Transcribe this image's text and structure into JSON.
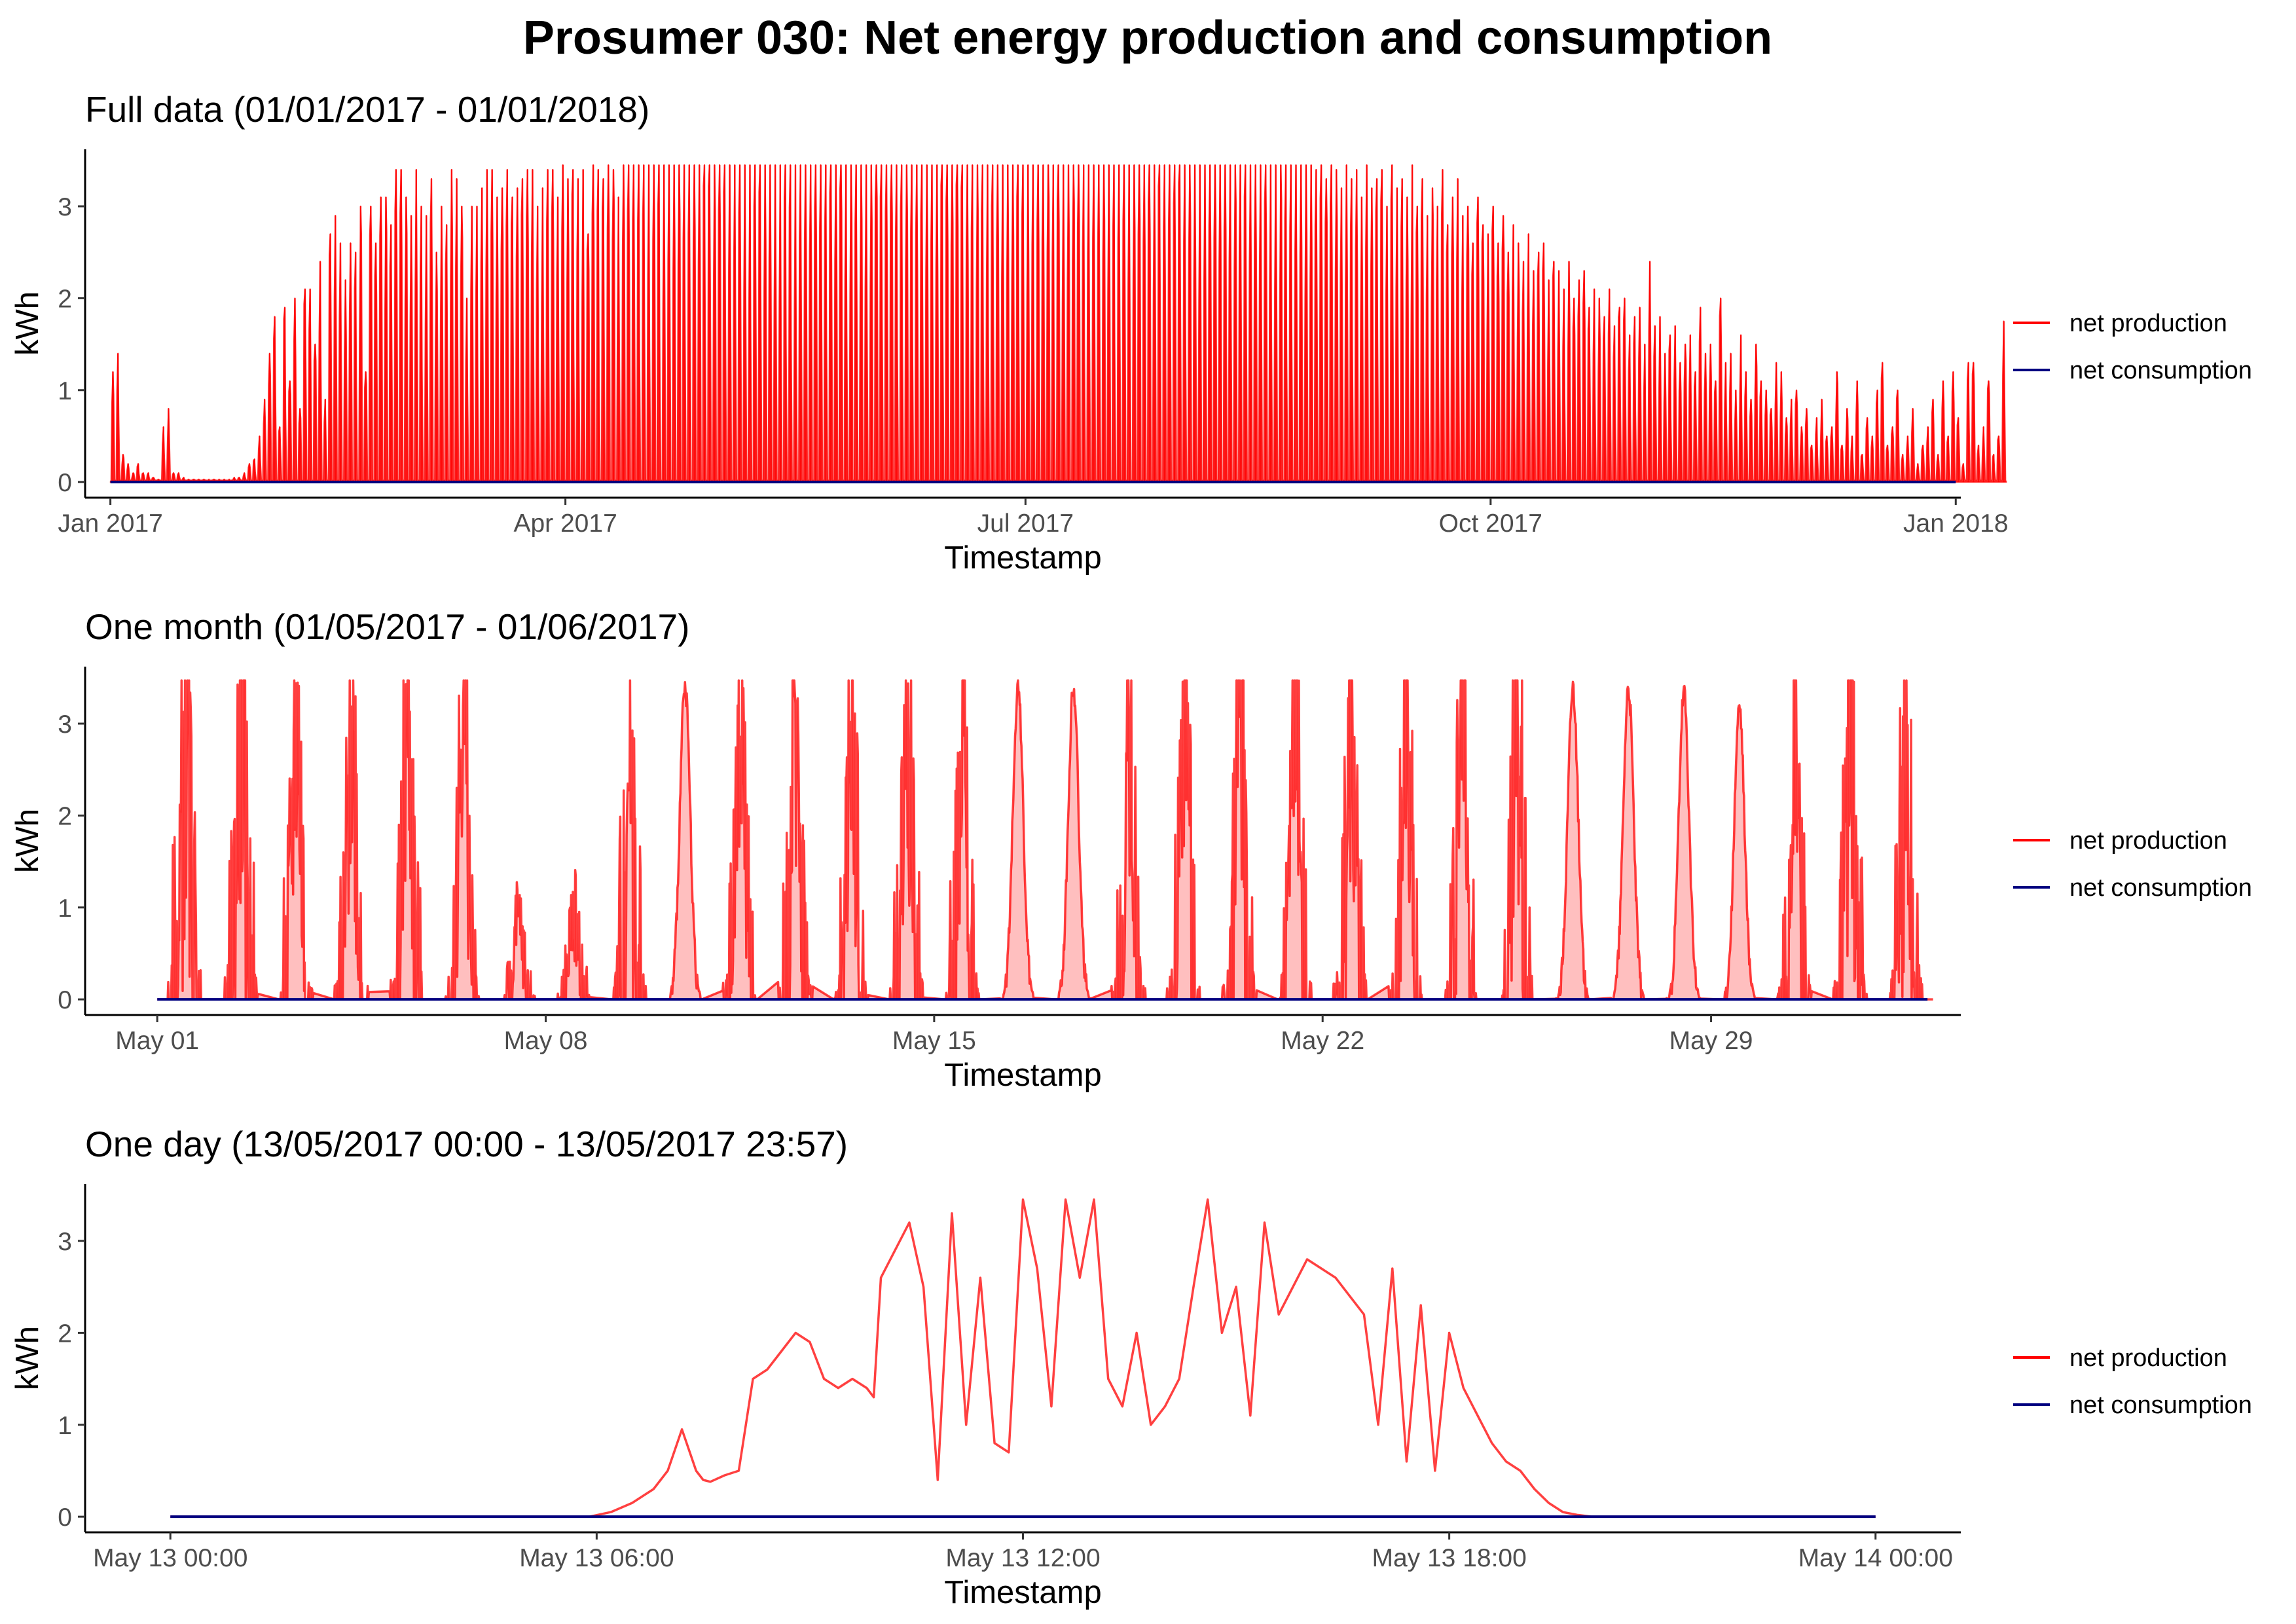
{
  "title": "Prosumer 030: Net energy production and consumption",
  "colors": {
    "production": "#ff0000",
    "consumption": "#000080",
    "axis": "#000000",
    "tick_text": "#4d4d4d"
  },
  "legend": [
    {
      "label": "net production",
      "color": "#ff0000"
    },
    {
      "label": "net consumption",
      "color": "#000080"
    }
  ],
  "chart_data": [
    {
      "type": "line",
      "title": "Full data (01/01/2017 - 01/01/2018)",
      "xlabel": "Timestamp",
      "ylabel": "kWh",
      "x_unit": "days since 2017-01-01",
      "xlim": [
        -5,
        366
      ],
      "ylim": [
        -0.17,
        3.62
      ],
      "x_ticks": [
        0,
        90,
        181,
        273,
        365
      ],
      "x_tick_labels": [
        "Jan 2017",
        "Apr 2017",
        "Jul 2017",
        "Oct 2017",
        "Jan 2018"
      ],
      "y_ticks": [
        0,
        1,
        2,
        3
      ],
      "y_tick_labels": [
        "0",
        "1",
        "2",
        "3"
      ],
      "series": [
        {
          "name": "net production",
          "color": "#ff0000",
          "style": "daily_peaks",
          "daily_max_kwh": [
            1.2,
            1.4,
            0.3,
            0.2,
            0.1,
            0.2,
            0.1,
            0.1,
            0.05,
            0.03,
            0.6,
            0.8,
            0.1,
            0.1,
            0.05,
            0.03,
            0.03,
            0.03,
            0.03,
            0.03,
            0.03,
            0.03,
            0.03,
            0.03,
            0.05,
            0.05,
            0.1,
            0.2,
            0.25,
            0.5,
            0.9,
            1.4,
            1.8,
            0.6,
            1.9,
            1.1,
            2.0,
            0.8,
            2.1,
            2.1,
            1.5,
            2.4,
            0.9,
            2.7,
            2.9,
            2.6,
            2.2,
            2.6,
            2.5,
            3.0,
            1.2,
            3.0,
            2.6,
            3.1,
            3.1,
            2.8,
            3.4,
            3.4,
            3.1,
            2.9,
            3.4,
            3.0,
            2.9,
            3.3,
            2.5,
            3.0,
            2.8,
            3.4,
            3.3,
            3.0,
            2.0,
            3.0,
            3.0,
            3.2,
            3.4,
            3.4,
            3.1,
            3.2,
            3.4,
            3.1,
            3.2,
            3.3,
            3.4,
            3.4,
            3.0,
            3.2,
            3.4,
            3.4,
            3.1,
            3.45,
            3.3,
            3.4,
            3.3,
            3.4,
            2.7,
            3.45,
            3.4,
            3.3,
            3.45,
            3.4,
            3.1,
            3.45,
            3.45,
            3.45,
            3.45,
            3.45,
            3.45,
            3.45,
            3.45,
            3.45,
            3.45,
            3.45,
            3.45,
            3.45,
            3.45,
            3.45,
            3.45,
            3.45,
            3.45,
            3.45,
            3.45,
            3.45,
            3.45,
            3.45,
            3.45,
            3.45,
            3.45,
            3.45,
            3.45,
            3.45,
            3.45,
            3.45,
            3.45,
            3.45,
            3.45,
            3.45,
            3.45,
            3.45,
            3.45,
            3.45,
            3.45,
            3.45,
            3.45,
            3.45,
            3.45,
            3.45,
            3.45,
            3.45,
            3.45,
            3.45,
            3.45,
            3.45,
            3.45,
            3.45,
            3.45,
            3.45,
            3.45,
            3.45,
            3.45,
            3.45,
            3.45,
            3.45,
            3.45,
            3.45,
            3.45,
            3.45,
            3.45,
            3.45,
            3.45,
            3.45,
            3.45,
            3.45,
            3.45,
            3.45,
            3.45,
            3.45,
            3.45,
            3.45,
            3.45,
            3.45,
            3.45,
            3.45,
            3.45,
            3.45,
            3.45,
            3.45,
            3.45,
            3.45,
            3.45,
            3.45,
            3.45,
            3.45,
            3.45,
            3.45,
            3.45,
            3.45,
            3.45,
            3.45,
            3.45,
            3.45,
            3.45,
            3.45,
            3.45,
            3.45,
            3.45,
            3.45,
            3.45,
            3.45,
            3.45,
            3.45,
            3.45,
            3.45,
            3.45,
            3.45,
            3.45,
            3.45,
            3.45,
            3.45,
            3.45,
            3.45,
            3.45,
            3.45,
            3.45,
            3.45,
            3.45,
            3.45,
            3.45,
            3.45,
            3.45,
            3.45,
            3.45,
            3.45,
            3.45,
            3.45,
            3.45,
            3.45,
            3.45,
            3.45,
            3.4,
            3.45,
            3.3,
            3.45,
            3.4,
            3.2,
            3.45,
            3.3,
            3.4,
            3.1,
            3.45,
            3.2,
            3.3,
            3.4,
            3.0,
            3.45,
            3.2,
            3.3,
            3.1,
            3.45,
            3.0,
            3.3,
            2.9,
            3.2,
            3.0,
            3.4,
            2.8,
            3.1,
            3.3,
            2.9,
            3.0,
            2.6,
            3.1,
            2.8,
            2.7,
            3.0,
            2.6,
            2.9,
            2.5,
            2.8,
            2.6,
            2.4,
            2.7,
            2.3,
            2.5,
            2.6,
            2.2,
            2.4,
            2.3,
            2.1,
            2.4,
            2.0,
            2.2,
            2.3,
            1.9,
            2.1,
            2.0,
            1.8,
            2.1,
            1.7,
            1.9,
            2.0,
            1.6,
            1.8,
            1.9,
            1.5,
            2.4,
            1.7,
            1.8,
            1.4,
            1.6,
            1.7,
            1.3,
            1.5,
            1.6,
            1.2,
            1.9,
            1.4,
            1.5,
            1.1,
            2.0,
            1.3,
            1.4,
            1.0,
            1.6,
            1.2,
            0.9,
            1.5,
            1.1,
            1.0,
            0.8,
            1.3,
            1.2,
            0.7,
            0.9,
            1.0,
            0.6,
            0.8,
            0.4,
            0.7,
            0.9,
            0.5,
            0.6,
            1.2,
            0.4,
            0.8,
            0.5,
            1.1,
            0.3,
            0.7,
            0.5,
            1.0,
            1.3,
            0.4,
            0.6,
            1.0,
            0.3,
            0.5,
            0.8,
            0.2,
            0.4,
            0.6,
            0.9,
            0.3,
            1.1,
            0.5,
            1.2,
            0.7,
            0.2,
            1.3,
            1.3,
            0.4,
            0.6,
            1.1,
            0.3,
            0.5,
            1.75
          ]
        },
        {
          "name": "net consumption",
          "color": "#000080",
          "style": "flat",
          "value_kwh": 0
        }
      ]
    },
    {
      "type": "line",
      "title": "One month (01/05/2017 - 01/06/2017)",
      "xlabel": "Timestamp",
      "ylabel": "kWh",
      "x_unit": "days since 2017-05-01",
      "xlim": [
        -1.3,
        32.5
      ],
      "ylim": [
        -0.17,
        3.62
      ],
      "x_ticks": [
        0,
        7,
        14,
        21,
        28
      ],
      "x_tick_labels": [
        "May 01",
        "May 08",
        "May 15",
        "May 22",
        "May 29"
      ],
      "y_ticks": [
        0,
        1,
        2,
        3
      ],
      "y_tick_labels": [
        "0",
        "1",
        "2",
        "3"
      ],
      "series": [
        {
          "name": "net production",
          "color": "#ff0000",
          "style": "daily_bells",
          "daily_peak_kwh": [
            3.45,
            3.45,
            3.45,
            3.45,
            3.45,
            3.45,
            1.0,
            1.1,
            3.45,
            3.45,
            3.45,
            3.45,
            3.45,
            3.45,
            3.45,
            3.45,
            3.45,
            3.45,
            3.45,
            3.45,
            3.45,
            3.45,
            3.45,
            3.45,
            3.45,
            3.45,
            3.45,
            3.35,
            3.2,
            3.45,
            3.45,
            3.45
          ],
          "daily_noise": [
            0.8,
            0.7,
            0.6,
            0.6,
            0.6,
            0.5,
            0.6,
            0.6,
            0.8,
            0.05,
            0.5,
            0.6,
            0.6,
            0.6,
            0.6,
            0.05,
            0.05,
            0.6,
            0.6,
            0.6,
            0.5,
            0.6,
            0.6,
            0.6,
            0.7,
            0.05,
            0.05,
            0.05,
            0.05,
            0.6,
            0.7,
            0.8
          ]
        },
        {
          "name": "net consumption",
          "color": "#000080",
          "style": "flat",
          "value_kwh": 0
        }
      ]
    },
    {
      "type": "line",
      "title": "One day (13/05/2017 00:00 - 13/05/2017 23:57)",
      "xlabel": "Timestamp",
      "ylabel": "kWh",
      "x_unit": "hours since 2017-05-13 00:00",
      "xlim": [
        -1.2,
        25.2
      ],
      "ylim": [
        -0.17,
        3.62
      ],
      "x_ticks": [
        0,
        6,
        12,
        18,
        24
      ],
      "x_tick_labels": [
        "May 13 00:00",
        "May 13 06:00",
        "May 13 12:00",
        "May 13 18:00",
        "May 14 00:00"
      ],
      "y_ticks": [
        0,
        1,
        2,
        3
      ],
      "y_tick_labels": [
        "0",
        "1",
        "2",
        "3"
      ],
      "series": [
        {
          "name": "net production",
          "color": "#ff0000",
          "style": "line",
          "x": [
            0,
            5.9,
            6.2,
            6.5,
            6.8,
            7.0,
            7.2,
            7.4,
            7.5,
            7.6,
            7.8,
            8.0,
            8.2,
            8.4,
            8.6,
            8.8,
            9.0,
            9.2,
            9.4,
            9.6,
            9.8,
            9.9,
            10.0,
            10.2,
            10.4,
            10.6,
            10.8,
            11.0,
            11.2,
            11.4,
            11.6,
            11.8,
            12.0,
            12.2,
            12.4,
            12.6,
            12.8,
            13.0,
            13.2,
            13.4,
            13.6,
            13.8,
            14.0,
            14.2,
            14.4,
            14.6,
            14.8,
            15.0,
            15.2,
            15.4,
            15.6,
            15.8,
            16.0,
            16.2,
            16.4,
            16.6,
            16.8,
            17.0,
            17.2,
            17.4,
            17.6,
            17.8,
            18.0,
            18.2,
            18.4,
            18.6,
            18.8,
            19.0,
            19.2,
            19.4,
            19.6,
            19.8,
            20.0,
            20.4,
            20.8,
            21.0,
            24
          ],
          "y": [
            0,
            0,
            0.05,
            0.15,
            0.3,
            0.5,
            0.95,
            0.5,
            0.4,
            0.38,
            0.45,
            0.5,
            1.5,
            1.6,
            1.8,
            2.0,
            1.9,
            1.5,
            1.4,
            1.5,
            1.4,
            1.3,
            2.6,
            2.9,
            3.2,
            2.5,
            0.4,
            3.3,
            1.0,
            2.6,
            0.8,
            0.7,
            3.45,
            2.7,
            1.2,
            3.45,
            2.6,
            3.45,
            1.5,
            1.2,
            2.0,
            1.0,
            1.2,
            1.5,
            2.5,
            3.45,
            2.0,
            2.5,
            1.1,
            3.2,
            2.2,
            2.5,
            2.8,
            2.7,
            2.6,
            2.4,
            2.2,
            1.0,
            2.7,
            0.6,
            2.3,
            0.5,
            2.0,
            1.4,
            1.1,
            0.8,
            0.6,
            0.5,
            0.3,
            0.15,
            0.05,
            0.02,
            0,
            0,
            0,
            0,
            0
          ]
        },
        {
          "name": "net consumption",
          "color": "#000080",
          "style": "flat",
          "value_kwh": 0
        }
      ]
    }
  ]
}
